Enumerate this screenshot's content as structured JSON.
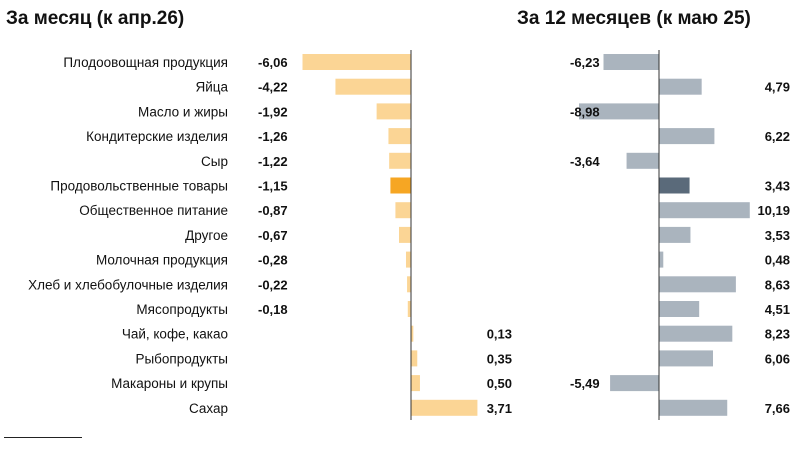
{
  "chart_data": [
    {
      "type": "bar",
      "orientation": "horizontal",
      "title": "За месяц (к апр.26)",
      "categories": [
        "Плодоовощная продукция",
        "Яйца",
        "Масло и жиры",
        "Кондитерские изделия",
        "Сыр",
        "Продовольственные товары",
        "Общественное питание",
        "Другое",
        "Молочная продукция",
        "Хлеб и хлебобулочные изделия",
        "Мясопродукты",
        "Чай, кофе, какао",
        "Рыбопродукты",
        "Макароны и крупы",
        "Сахар"
      ],
      "value_labels": [
        "-6,06",
        "-4,22",
        "-1,92",
        "-1,26",
        "-1,22",
        "-1,15",
        "-0,87",
        "-0,67",
        "-0,28",
        "-0,22",
        "-0,18",
        "0,13",
        "0,35",
        "0,50",
        "3,71"
      ],
      "values": [
        -6.06,
        -4.22,
        -1.92,
        -1.26,
        -1.22,
        -1.15,
        -0.87,
        -0.67,
        -0.28,
        -0.22,
        -0.18,
        0.13,
        0.35,
        0.5,
        3.71
      ],
      "highlight_index": 5,
      "xlim": [
        -6.06,
        3.71
      ],
      "bar_color": "#fbd595",
      "highlight_color": "#f6a623",
      "grid": false,
      "legend": "none"
    },
    {
      "type": "bar",
      "orientation": "horizontal",
      "title": "За 12 месяцев (к маю 25)",
      "categories": [
        "Плодоовощная продукция",
        "Яйца",
        "Масло и жиры",
        "Кондитерские изделия",
        "Сыр",
        "Продовольственные товары",
        "Общественное питание",
        "Другое",
        "Молочная продукция",
        "Хлеб и хлебобулочные изделия",
        "Мясопродукты",
        "Чай, кофе, какао",
        "Рыбопродукты",
        "Макароны и крупы",
        "Сахар"
      ],
      "value_labels": [
        "-6,23",
        "4,79",
        "-8,98",
        "6,22",
        "-3,64",
        "3,43",
        "10,19",
        "3,53",
        "0,48",
        "8,63",
        "4,51",
        "8,23",
        "6,06",
        "-5,49",
        "7,66"
      ],
      "values": [
        -6.23,
        4.79,
        -8.98,
        6.22,
        -3.64,
        3.43,
        10.19,
        3.53,
        0.48,
        8.63,
        4.51,
        8.23,
        6.06,
        -5.49,
        7.66
      ],
      "highlight_index": 5,
      "xlim": [
        -8.98,
        10.19
      ],
      "bar_color": "#aab4be",
      "highlight_color": "#5a6a7a",
      "grid": false,
      "legend": "none"
    }
  ]
}
